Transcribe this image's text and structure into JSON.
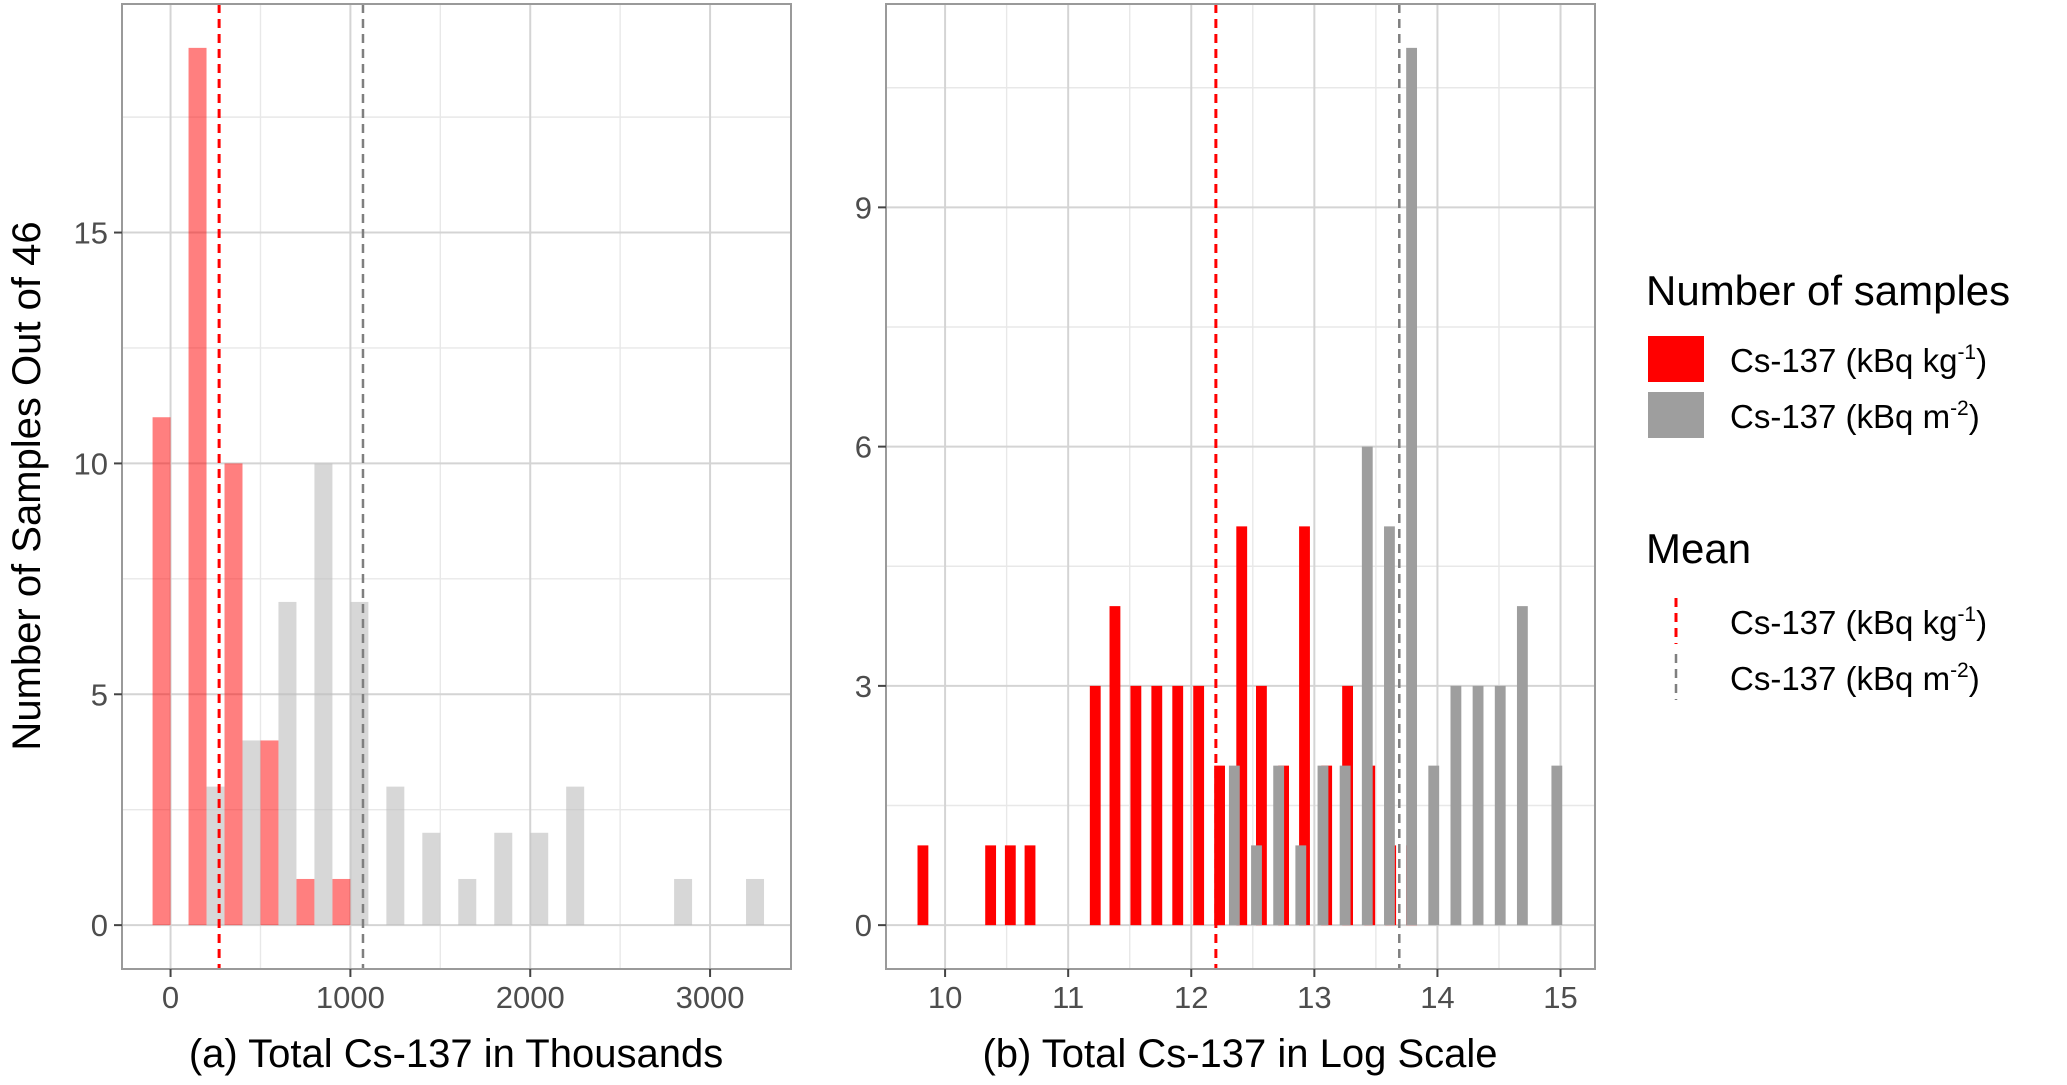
{
  "y_title": "Number of Samples Out of 46",
  "legend": {
    "fill_title": "Number of samples",
    "mean_title": "Mean",
    "items": [
      {
        "base": "Cs-137 (kBq kg",
        "sup": "-1",
        "tail": ")",
        "color": "#ff0000"
      },
      {
        "base": "Cs-137 (kBq m",
        "sup": "-2",
        "tail": ")",
        "color": "#9e9e9e"
      }
    ]
  },
  "chart_data": [
    {
      "type": "bar",
      "title": "",
      "xlabel": "(a) Total Cs-137 in Thousands",
      "ylabel": "Number of Samples Out of 46",
      "xlim": [
        -270,
        3450
      ],
      "ylim": [
        -0.95,
        19.95
      ],
      "x_ticks": [
        0,
        1000,
        2000,
        3000
      ],
      "x_tick_labels": [
        "0",
        "1000",
        "2000",
        "3000"
      ],
      "y_ticks": [
        0,
        5,
        10,
        15
      ],
      "y_tick_labels": [
        "0",
        "5",
        "10",
        "15"
      ],
      "grid": true,
      "bar_width": 100,
      "series": [
        {
          "name": "Cs-137 (kBq kg-1)",
          "color": "#ff0000",
          "opacity": 0.5,
          "x": [
            -50,
            150,
            350,
            550,
            750,
            950
          ],
          "values": [
            11,
            19,
            10,
            4,
            1,
            1
          ]
        },
        {
          "name": "Cs-137 (kBq m-2)",
          "color": "#bdbdbd",
          "opacity": 0.6,
          "x": [
            250,
            450,
            650,
            850,
            1050,
            1250,
            1450,
            1650,
            1850,
            2050,
            2250,
            2850,
            3250
          ],
          "values": [
            3,
            4,
            7,
            10,
            7,
            3,
            2,
            1,
            2,
            2,
            3,
            1,
            1
          ]
        }
      ],
      "mean_lines": [
        {
          "series": "Cs-137 (kBq kg-1)",
          "x": 270,
          "color": "#ff0000"
        },
        {
          "series": "Cs-137 (kBq m-2)",
          "x": 1070,
          "color": "#7f7f7f"
        }
      ]
    },
    {
      "type": "bar",
      "title": "",
      "xlabel": "(b) Total Cs-137 in Log Scale",
      "ylabel": "",
      "xlim": [
        9.52,
        15.28
      ],
      "ylim": [
        -0.55,
        11.55
      ],
      "x_ticks": [
        10,
        11,
        12,
        13,
        14,
        15
      ],
      "x_tick_labels": [
        "10",
        "11",
        "12",
        "13",
        "14",
        "15"
      ],
      "y_ticks": [
        0,
        3,
        6,
        9
      ],
      "y_tick_labels": [
        "0",
        "3",
        "6",
        "9"
      ],
      "grid": true,
      "bar_width": 0.088,
      "series": [
        {
          "name": "Cs-137 (kBq kg-1)",
          "color": "#ff0000",
          "opacity": 1,
          "x": [
            9.82,
            10.37,
            10.53,
            10.69,
            11.22,
            11.38,
            11.55,
            11.72,
            11.89,
            12.06,
            12.23,
            12.41,
            12.57,
            12.75,
            12.92,
            13.1,
            13.27,
            13.45,
            13.62,
            13.79
          ],
          "values": [
            1,
            1,
            1,
            1,
            3,
            4,
            3,
            3,
            3,
            3,
            2,
            5,
            3,
            2,
            5,
            2,
            3,
            2,
            1,
            1
          ]
        },
        {
          "name": "Cs-137 (kBq m-2)",
          "color": "#9e9e9e",
          "opacity": 1,
          "x": [
            12.35,
            12.53,
            12.71,
            12.89,
            13.07,
            13.25,
            13.43,
            13.61,
            13.79,
            13.97,
            14.15,
            14.33,
            14.51,
            14.69,
            14.97
          ],
          "values": [
            2,
            1,
            2,
            1,
            2,
            2,
            6,
            5,
            11,
            2,
            3,
            3,
            3,
            4,
            2
          ]
        }
      ],
      "mean_lines": [
        {
          "series": "Cs-137 (kBq kg-1)",
          "x": 12.2,
          "color": "#ff0000"
        },
        {
          "series": "Cs-137 (kBq m-2)",
          "x": 13.69,
          "color": "#7f7f7f"
        }
      ]
    }
  ]
}
